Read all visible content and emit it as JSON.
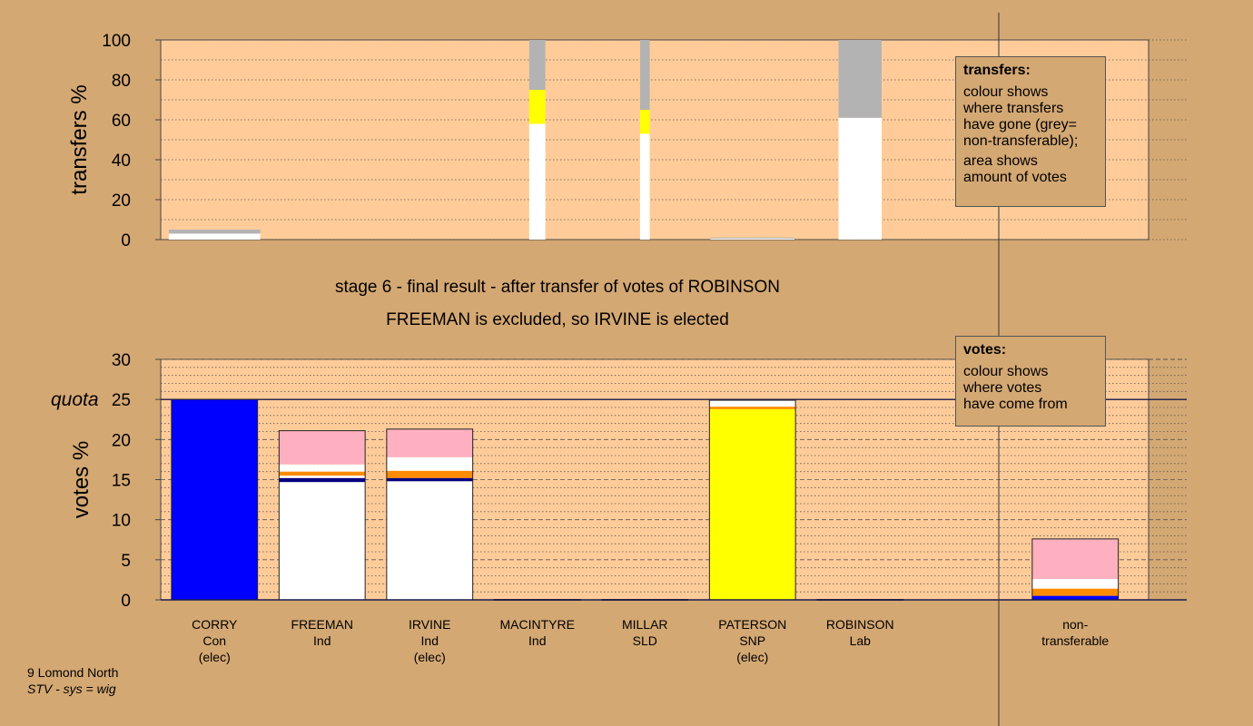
{
  "chart_data": [
    {
      "type": "bar",
      "name": "transfers",
      "ylabel": "transfers %",
      "ylim": [
        0,
        100
      ],
      "yticks": [
        0,
        20,
        40,
        60,
        80,
        100
      ],
      "grid": true,
      "bars": [
        {
          "pos": 0.5,
          "width": 0.85,
          "segments": [
            {
              "value": 3,
              "color": "#ffffff"
            },
            {
              "value": 2,
              "color": "#b3b3b3"
            }
          ]
        },
        {
          "pos": 3.5,
          "width": 0.15,
          "segments": [
            {
              "value": 58,
              "color": "#ffffff"
            },
            {
              "value": 17,
              "color": "#ffff00"
            },
            {
              "value": 25,
              "color": "#b3b3b3"
            }
          ]
        },
        {
          "pos": 4.5,
          "width": 0.09,
          "segments": [
            {
              "value": 53,
              "color": "#ffffff"
            },
            {
              "value": 12,
              "color": "#ffff00"
            },
            {
              "value": 35,
              "color": "#b3b3b3"
            }
          ]
        },
        {
          "pos": 5.5,
          "width": 0.78,
          "segments": [
            {
              "value": 0.5,
              "color": "#ffffff"
            },
            {
              "value": 0.5,
              "color": "#b3b3b3"
            }
          ]
        },
        {
          "pos": 6.5,
          "width": 0.4,
          "segments": [
            {
              "value": 61,
              "color": "#ffffff"
            },
            {
              "value": 39,
              "color": "#b3b3b3"
            }
          ]
        }
      ]
    },
    {
      "type": "bar",
      "name": "votes",
      "ylabel": "votes %",
      "ylim": [
        0,
        30
      ],
      "yticks": [
        0,
        5,
        10,
        15,
        20,
        25,
        30
      ],
      "quota": 25,
      "quota_label": "quota",
      "grid": true,
      "bars": [
        {
          "pos": 0.5,
          "segments": [
            {
              "value": 25,
              "color": "#0000ff"
            }
          ]
        },
        {
          "pos": 1.5,
          "segments": [
            {
              "value": 14.7,
              "color": "#ffffff"
            },
            {
              "value": 0.5,
              "color": "#000080"
            },
            {
              "value": 0.3,
              "color": "#ffffff"
            },
            {
              "value": 0.5,
              "color": "#ff8c00"
            },
            {
              "value": 0.9,
              "color": "#ffffff"
            },
            {
              "value": 4.2,
              "color": "#ffb0c0"
            }
          ]
        },
        {
          "pos": 2.5,
          "segments": [
            {
              "value": 14.8,
              "color": "#ffffff"
            },
            {
              "value": 0.4,
              "color": "#000080"
            },
            {
              "value": 0.9,
              "color": "#ff8c00"
            },
            {
              "value": 1.7,
              "color": "#ffffff"
            },
            {
              "value": 3.5,
              "color": "#ffb0c0"
            }
          ]
        },
        {
          "pos": 3.5,
          "segments": [
            {
              "value": 0.05,
              "color": "#ffffff"
            }
          ]
        },
        {
          "pos": 4.5,
          "segments": [
            {
              "value": 0.05,
              "color": "#ffffff"
            }
          ]
        },
        {
          "pos": 5.5,
          "segments": [
            {
              "value": 23.8,
              "color": "#ffff00"
            },
            {
              "value": 0.3,
              "color": "#ff8c00"
            },
            {
              "value": 0.8,
              "color": "#ffffff"
            }
          ]
        },
        {
          "pos": 6.5,
          "segments": [
            {
              "value": 0.05,
              "color": "#ffffff"
            }
          ]
        },
        {
          "pos": 8.5,
          "segments": [
            {
              "value": 0.5,
              "color": "#0000ff"
            },
            {
              "value": 0.9,
              "color": "#ff8c00"
            },
            {
              "value": 1.2,
              "color": "#ffffff"
            },
            {
              "value": 5,
              "color": "#ffb0c0"
            }
          ]
        }
      ],
      "categories": [
        {
          "pos": 0.5,
          "lines": [
            "CORRY",
            "Con",
            "(elec)"
          ]
        },
        {
          "pos": 1.5,
          "lines": [
            "FREEMAN",
            "Ind"
          ]
        },
        {
          "pos": 2.5,
          "lines": [
            "IRVINE",
            "Ind",
            "(elec)"
          ]
        },
        {
          "pos": 3.5,
          "lines": [
            "MACINTYRE",
            "Ind"
          ]
        },
        {
          "pos": 4.5,
          "lines": [
            "MILLAR",
            "SLD"
          ]
        },
        {
          "pos": 5.5,
          "lines": [
            "PATERSON",
            "SNP",
            "(elec)"
          ]
        },
        {
          "pos": 6.5,
          "lines": [
            "ROBINSON",
            "Lab"
          ]
        },
        {
          "pos": 8.5,
          "lines": [
            "non-",
            "transferable"
          ]
        }
      ]
    }
  ],
  "titles": {
    "line1": "stage 6 - final result - after transfer of votes of ROBINSON",
    "line2": "FREEMAN is excluded, so IRVINE is elected"
  },
  "legend_transfers": {
    "title": "transfers:",
    "line1": "colour shows\nwhere transfers\nhave gone (grey=\nnon-transferable);",
    "line2": "area shows\namount of votes"
  },
  "legend_votes": {
    "title": "votes:",
    "line1": "colour shows\nwhere votes\nhave come from"
  },
  "footnote": {
    "line1": "9 Lomond North",
    "line2": "STV - sys = wig"
  },
  "colors": {
    "background": "#d4a873",
    "plot_bg": "#ffcc99",
    "nontransferable_grey": "#b3b3b3"
  }
}
